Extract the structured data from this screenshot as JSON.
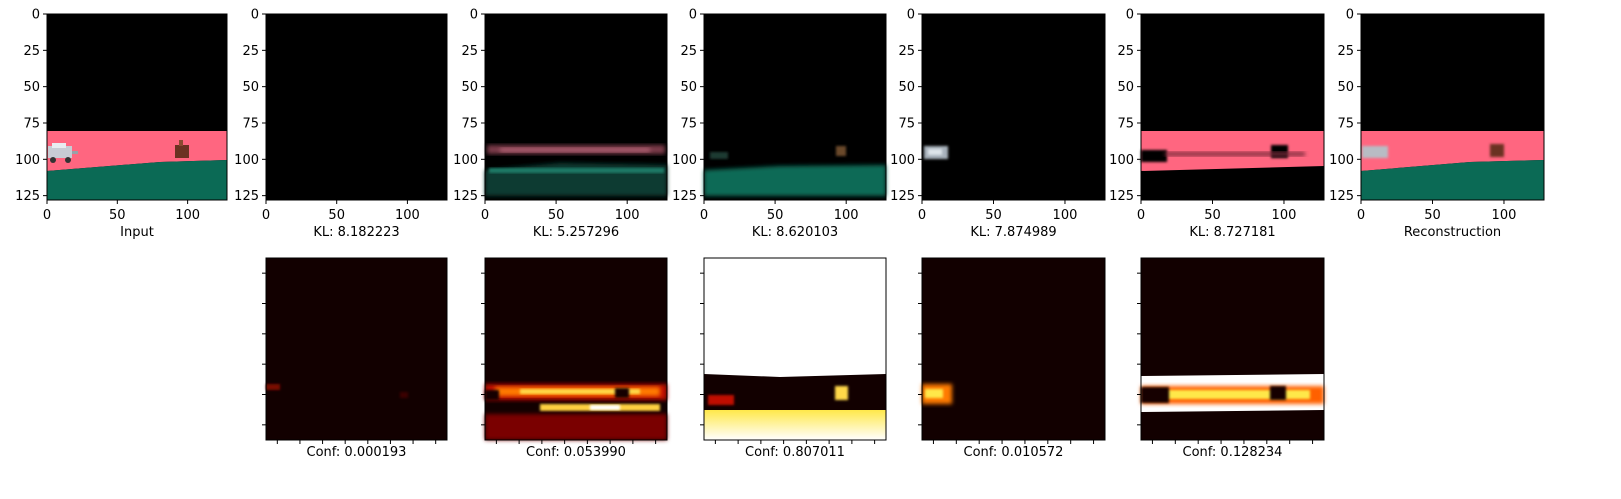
{
  "figure": {
    "top_captions": [
      "Input",
      "KL: 8.182223",
      "KL: 5.257296",
      "KL: 8.620103",
      "KL: 7.874989",
      "KL: 8.727181",
      "Reconstruction"
    ],
    "bottom_captions": [
      "Conf: 0.000193",
      "Conf: 0.053990",
      "Conf: 0.807011",
      "Conf: 0.010572",
      "Conf: 0.128234"
    ],
    "colors": {
      "black": "#000000",
      "road_pink": "#ff6680",
      "grass_green": "#0b6a55",
      "heat_dark": "#120000",
      "heat_red": "#c01000",
      "heat_orange": "#ff7a00",
      "heat_yellow": "#ffe84a",
      "heat_white": "#ffffff"
    }
  },
  "chart_data": {
    "type": "image-grid",
    "top_row": {
      "xticks": [
        "0",
        "50",
        "100"
      ],
      "yticks": [
        "0",
        "25",
        "50",
        "75",
        "100",
        "125"
      ],
      "panels": [
        {
          "caption": "Input",
          "kl": null
        },
        {
          "caption": "KL: 8.182223",
          "kl": 8.182223
        },
        {
          "caption": "KL: 5.257296",
          "kl": 5.257296
        },
        {
          "caption": "KL: 8.620103",
          "kl": 8.620103
        },
        {
          "caption": "KL: 7.874989",
          "kl": 7.874989
        },
        {
          "caption": "KL: 8.727181",
          "kl": 8.727181
        },
        {
          "caption": "Reconstruction",
          "kl": null
        }
      ]
    },
    "bottom_row": {
      "panels": [
        {
          "caption": "Conf: 0.000193",
          "conf": 0.000193
        },
        {
          "caption": "Conf: 0.053990",
          "conf": 0.05399
        },
        {
          "caption": "Conf: 0.807011",
          "conf": 0.807011
        },
        {
          "caption": "Conf: 0.010572",
          "conf": 0.010572
        },
        {
          "caption": "Conf: 0.128234",
          "conf": 0.128234
        }
      ]
    }
  }
}
